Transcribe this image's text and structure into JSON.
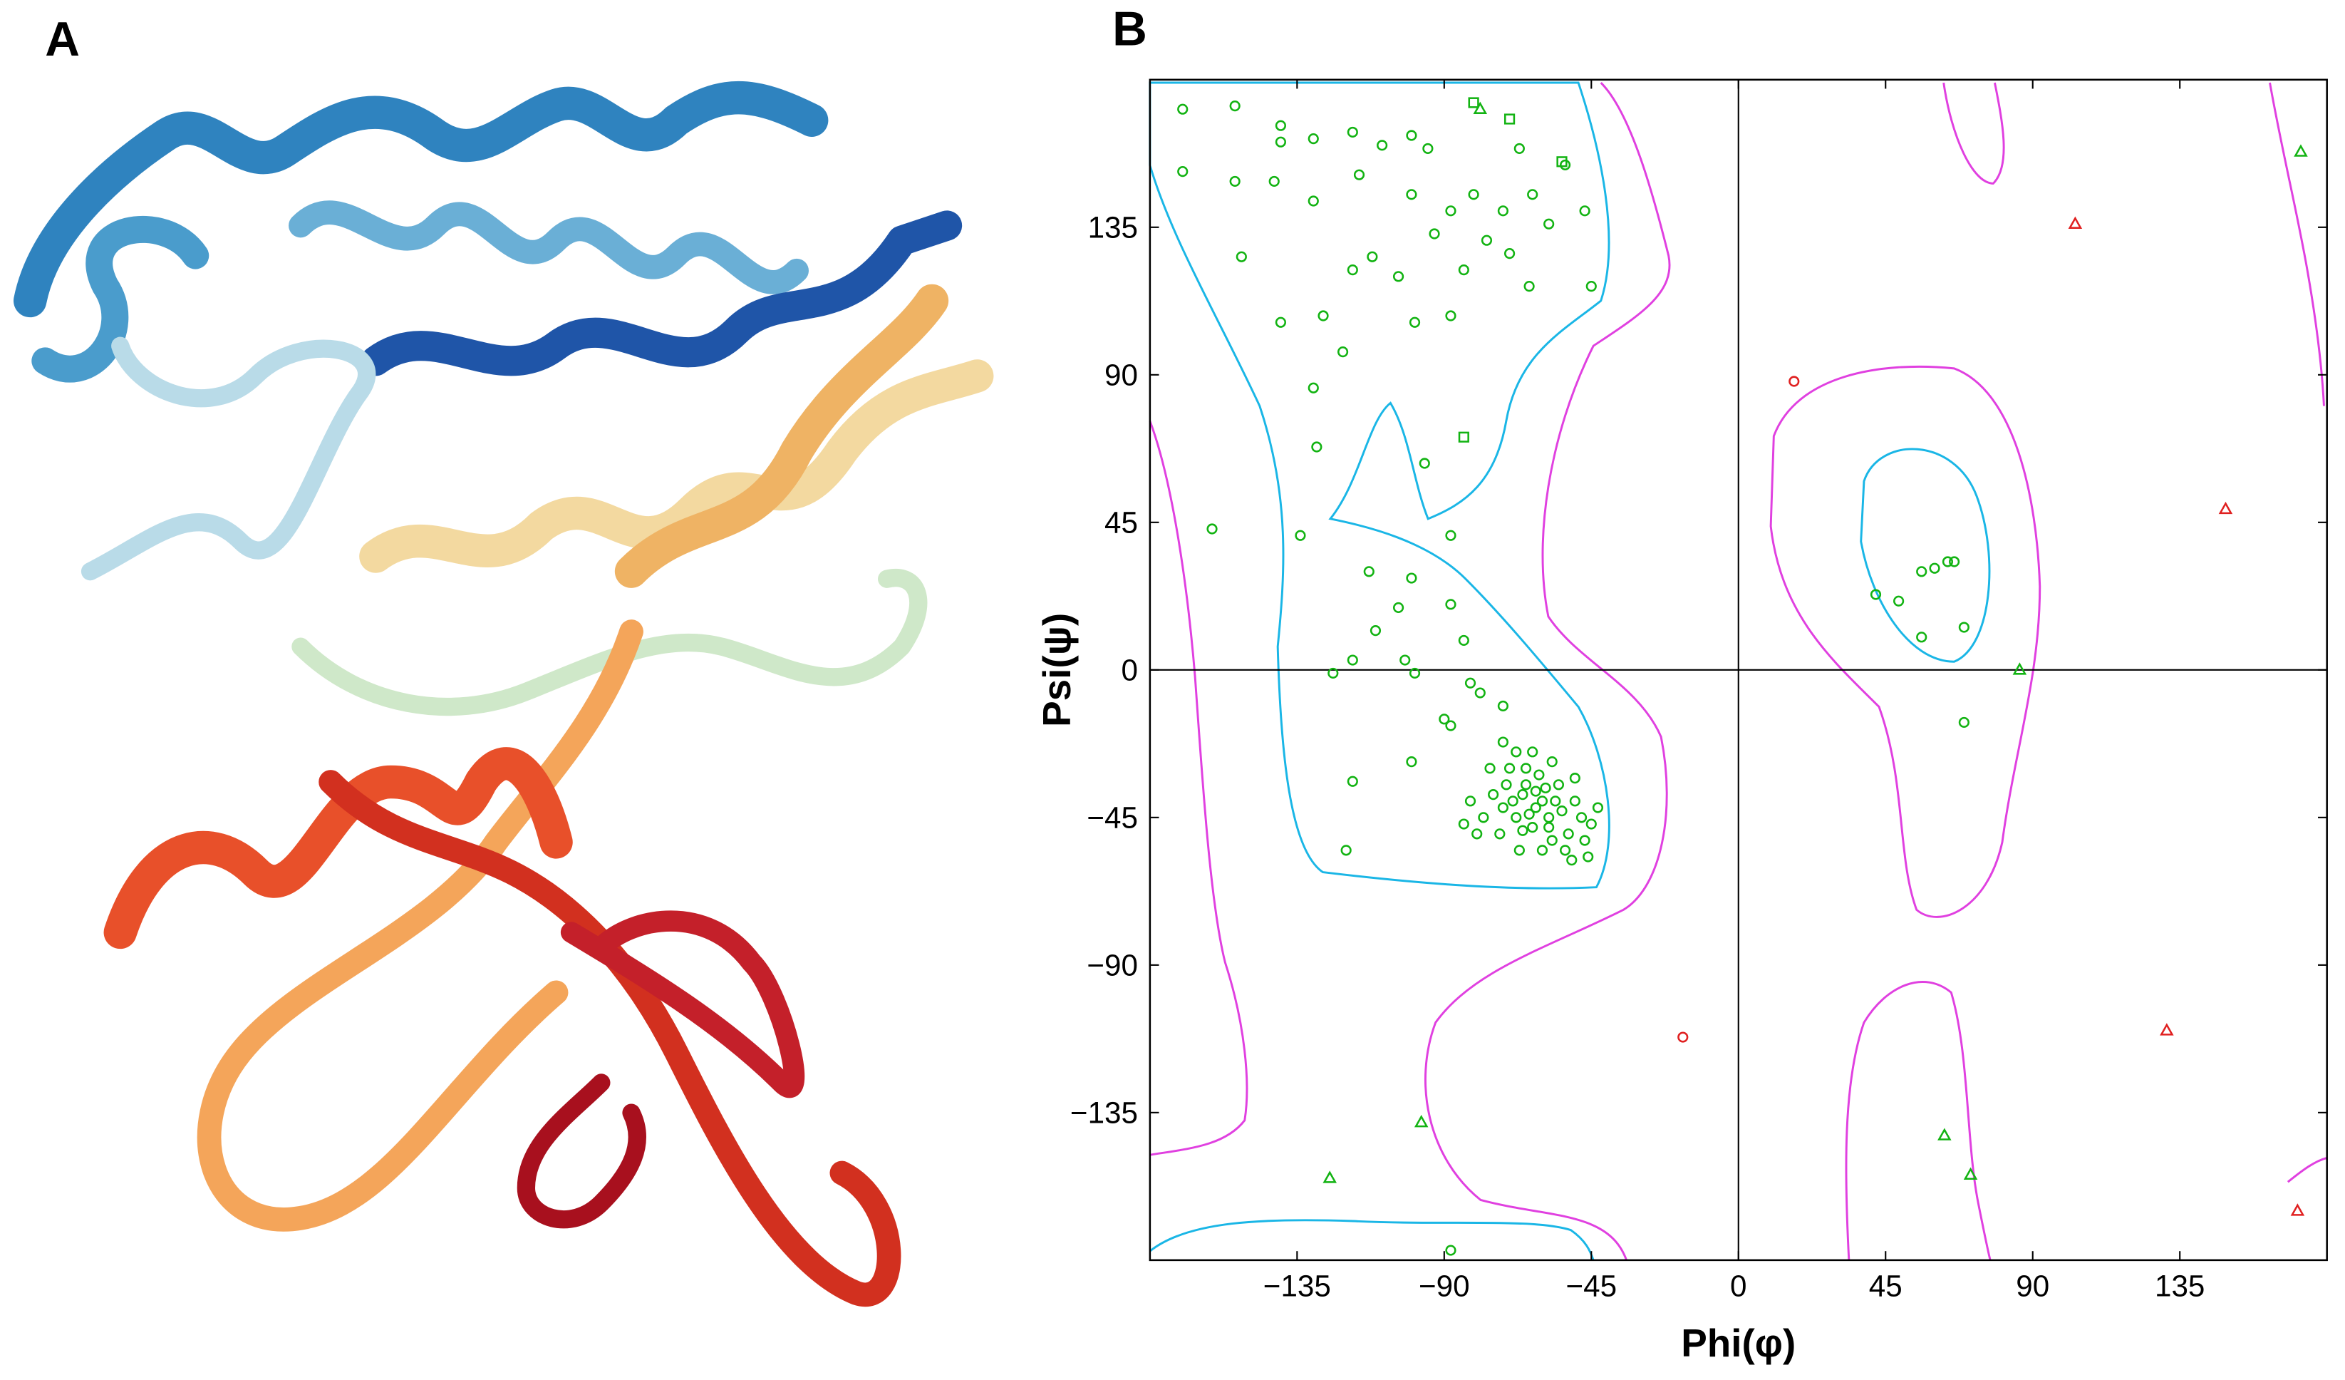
{
  "image_panel": {
    "label": "A"
  },
  "chart_data": {
    "type": "scatter",
    "panel": "B",
    "xlabel": "Phi(φ)",
    "ylabel": "Psi(ψ)",
    "xlim": [
      -180,
      180
    ],
    "ylim": [
      -180,
      180
    ],
    "xticks": [
      {
        "value": -135,
        "label": "−135"
      },
      {
        "value": -90,
        "label": "−90"
      },
      {
        "value": -45,
        "label": "−45"
      },
      0,
      45,
      90,
      135
    ],
    "yticks": [
      {
        "value": -135,
        "label": "−135"
      },
      {
        "value": -90,
        "label": "−90"
      },
      {
        "value": -45,
        "label": "−45"
      },
      0,
      45,
      90,
      135
    ],
    "series": [
      {
        "marker": "circle",
        "color": "#12b312",
        "x": [
          -170,
          -154,
          -170,
          -154,
          -152,
          -140,
          -140,
          -142,
          -130,
          -130,
          -116,
          -118,
          -109,
          -100,
          -95,
          -100,
          -93,
          -88,
          -81,
          -77,
          -72,
          -67,
          -63,
          -58,
          -53,
          -47,
          -45,
          -118,
          -104,
          -88,
          -99,
          -127,
          -140,
          -121,
          -130,
          -129,
          -96,
          -112,
          -64,
          -84,
          -70,
          -161,
          -134,
          -113,
          -100,
          -88,
          -104,
          -111,
          -118,
          -102,
          -88,
          -84,
          -99,
          -82,
          -79,
          -88,
          -72,
          -124,
          -100,
          -118,
          -120,
          -90,
          -70,
          -65,
          -60,
          -58,
          -62,
          -66,
          -55,
          -50,
          -48,
          -52,
          -57,
          -63,
          -68,
          -72,
          -75,
          -78,
          -80,
          -73,
          -67,
          -60,
          -53,
          -47,
          -45,
          -43,
          -50,
          -57,
          -63,
          -68,
          -72,
          -61,
          -64,
          -59,
          -69,
          -54,
          -66,
          -58,
          -62,
          -71,
          -56,
          -65,
          -76,
          -82,
          -84,
          -51,
          -46,
          42,
          49,
          56,
          60,
          64,
          66,
          69,
          56,
          69,
          -88
        ],
        "y": [
          171,
          172,
          152,
          149,
          126,
          166,
          161,
          149,
          143,
          162,
          151,
          164,
          160,
          163,
          159,
          145,
          133,
          140,
          145,
          131,
          140,
          159,
          145,
          136,
          154,
          140,
          117,
          122,
          120,
          108,
          106,
          108,
          106,
          97,
          86,
          68,
          63,
          126,
          117,
          122,
          127,
          43,
          41,
          30,
          28,
          41,
          19,
          12,
          3,
          3,
          20,
          9,
          -1,
          -4,
          -7,
          -17,
          -11,
          -1,
          -28,
          -34,
          -55,
          -15,
          -30,
          -35,
          -40,
          -45,
          -42,
          -38,
          -35,
          -40,
          -45,
          -50,
          -52,
          -48,
          -45,
          -42,
          -38,
          -45,
          -50,
          -50,
          -55,
          -55,
          -55,
          -52,
          -47,
          -42,
          -33,
          -28,
          -25,
          -25,
          -22,
          -32,
          -44,
          -36,
          -40,
          -43,
          -49,
          -48,
          -37,
          -35,
          -40,
          -30,
          -30,
          -40,
          -47,
          -58,
          -57,
          23,
          21,
          30,
          31,
          33,
          33,
          13,
          10,
          -16,
          -177
        ]
      },
      {
        "marker": "triangle",
        "color": "#12b312",
        "x": [
          -79,
          172,
          86,
          -97,
          -125,
          63,
          71
        ],
        "y": [
          171,
          158,
          0,
          -138,
          -155,
          -142,
          -154
        ]
      },
      {
        "marker": "square",
        "color": "#12b312",
        "x": [
          -81,
          -70,
          -84,
          -54
        ],
        "y": [
          173,
          168,
          71,
          155
        ]
      },
      {
        "marker": "circle",
        "color": "#e02020",
        "x": [
          17,
          -17
        ],
        "y": [
          88,
          -112
        ]
      },
      {
        "marker": "triangle",
        "color": "#e02020",
        "x": [
          103,
          149,
          131,
          171
        ],
        "y": [
          136,
          49,
          -110,
          -165
        ]
      }
    ]
  }
}
